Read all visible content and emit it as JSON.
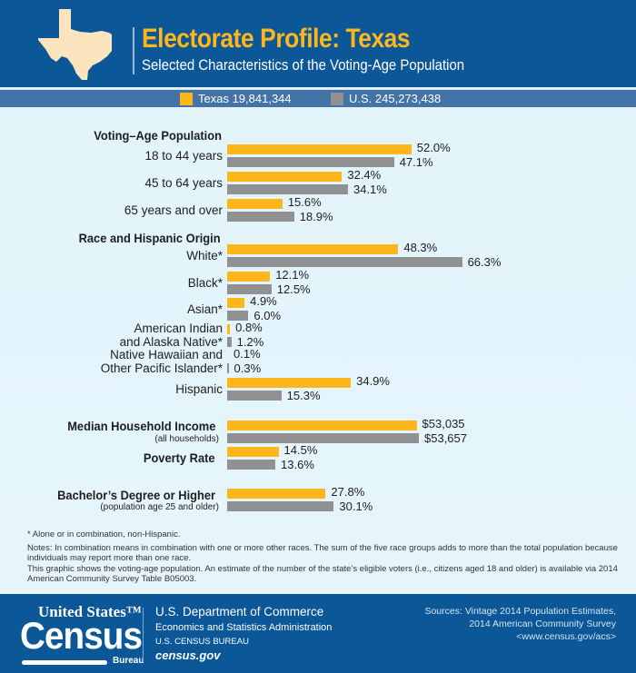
{
  "header": {
    "title": "Electorate Profile: Texas",
    "subtitle": "Selected Characteristics of the Voting-Age Population",
    "state_icon": "texas-map-icon"
  },
  "legend": {
    "items": [
      {
        "label": "Texas 19,841,344",
        "color": "#fdb71a"
      },
      {
        "label": "U.S. 245,273,438",
        "color": "#919194"
      }
    ]
  },
  "sections": {
    "voting_age": "Voting–Age Population",
    "race": "Race and Hispanic Origin",
    "income": "Median Household Income",
    "income_sub": "(all households)",
    "poverty": "Poverty Rate",
    "bachelor": "Bachelor’s Degree or Higher",
    "bachelor_sub": "(population age 25 and older)"
  },
  "chart_data": {
    "type": "bar",
    "orientation": "horizontal",
    "title": "Electorate Profile: Texas",
    "subtitle": "Selected Characteristics of the Voting-Age Population",
    "legend": [
      "Texas 19,841,344",
      "U.S. 245,273,438"
    ],
    "legend_position": "top",
    "groups": [
      {
        "name": "Voting–Age Population",
        "categories": [
          "18 to 44 years",
          "45 to 64 years",
          "65 years and over"
        ],
        "series": [
          {
            "name": "Texas",
            "values": [
              52.0,
              32.4,
              15.6
            ],
            "labels": [
              "52.0%",
              "32.4%",
              "15.6%"
            ]
          },
          {
            "name": "U.S.",
            "values": [
              47.1,
              34.1,
              18.9
            ],
            "labels": [
              "47.1%",
              "34.1%",
              "18.9%"
            ]
          }
        ]
      },
      {
        "name": "Race and Hispanic Origin",
        "categories": [
          "White*",
          "Black*",
          "Asian*",
          "American Indian and Alaska Native*",
          "Native Hawaiian and Other Pacific Islander*",
          "Hispanic"
        ],
        "series": [
          {
            "name": "Texas",
            "values": [
              48.3,
              12.1,
              4.9,
              0.8,
              0.1,
              34.9
            ],
            "labels": [
              "48.3%",
              "12.1%",
              "4.9%",
              "0.8%",
              "0.1%",
              "34.9%"
            ]
          },
          {
            "name": "U.S.",
            "values": [
              66.3,
              12.5,
              6.0,
              1.2,
              0.3,
              15.3
            ],
            "labels": [
              "66.3%",
              "12.5%",
              "6.0%",
              "1.2%",
              "0.3%",
              "15.3%"
            ]
          }
        ]
      },
      {
        "name": "Median Household Income",
        "categories": [
          "Median Household Income (all households)"
        ],
        "series": [
          {
            "name": "Texas",
            "values": [
              53035
            ],
            "labels": [
              "$53,035"
            ]
          },
          {
            "name": "U.S.",
            "values": [
              53657
            ],
            "labels": [
              "$53,657"
            ]
          }
        ]
      },
      {
        "name": "Poverty Rate",
        "categories": [
          "Poverty Rate"
        ],
        "series": [
          {
            "name": "Texas",
            "values": [
              14.5
            ],
            "labels": [
              "14.5%"
            ]
          },
          {
            "name": "U.S.",
            "values": [
              13.6
            ],
            "labels": [
              "13.6%"
            ]
          }
        ]
      },
      {
        "name": "Bachelor’s Degree or Higher",
        "categories": [
          "Bachelor’s Degree or Higher (population age 25 and older)"
        ],
        "series": [
          {
            "name": "Texas",
            "values": [
              27.8
            ],
            "labels": [
              "27.8%"
            ]
          },
          {
            "name": "U.S.",
            "values": [
              30.1
            ],
            "labels": [
              "30.1%"
            ]
          }
        ]
      }
    ]
  },
  "rows": [
    {
      "label": "18 to 44 years",
      "tx": 52.0,
      "us": 47.1,
      "tx_label": "52.0%",
      "us_label": "47.1%"
    },
    {
      "label": "45 to 64 years",
      "tx": 32.4,
      "us": 34.1,
      "tx_label": "32.4%",
      "us_label": "34.1%"
    },
    {
      "label": "65 years and over",
      "tx": 15.6,
      "us": 18.9,
      "tx_label": "15.6%",
      "us_label": "18.9%"
    },
    {
      "label": "White*",
      "tx": 48.3,
      "us": 66.3,
      "tx_label": "48.3%",
      "us_label": "66.3%"
    },
    {
      "label": "Black*",
      "tx": 12.1,
      "us": 12.5,
      "tx_label": "12.1%",
      "us_label": "12.5%"
    },
    {
      "label": "Asian*",
      "tx": 4.9,
      "us": 6.0,
      "tx_label": "4.9%",
      "us_label": "6.0%"
    },
    {
      "label": "American Indian\nand Alaska Native*",
      "tx": 0.8,
      "us": 1.2,
      "tx_label": "0.8%",
      "us_label": "1.2%"
    },
    {
      "label": "Native Hawaiian and\nOther Pacific Islander*",
      "tx": 0.1,
      "us": 0.3,
      "tx_label": "0.1%",
      "us_label": "0.3%"
    },
    {
      "label": "Hispanic",
      "tx": 34.9,
      "us": 15.3,
      "tx_label": "34.9%",
      "us_label": "15.3%"
    },
    {
      "label": "",
      "tx": 53035,
      "us": 53657,
      "tx_label": "$53,035",
      "us_label": "$53,657",
      "income": true
    },
    {
      "label": "",
      "tx": 14.5,
      "us": 13.6,
      "tx_label": "14.5%",
      "us_label": "13.6%"
    },
    {
      "label": "",
      "tx": 27.8,
      "us": 30.1,
      "tx_label": "27.8%",
      "us_label": "30.1%"
    }
  ],
  "notes": {
    "asterisk": "* Alone or in combination, non-Hispanic.",
    "notes": "Notes: In combination means in combination with one or more other races. The sum of the five race groups adds to more than the total population because individuals may report more than one race.",
    "graphic": "This graphic shows the voting-age population. An estimate of the number of the state’s eligible voters (i.e., citizens aged 18 and older) is available via 2014 American Community Survey Table B05003."
  },
  "footer": {
    "logo_united_states": "United States™",
    "logo_census": "Census",
    "logo_bureau": "Bureau",
    "dept": "U.S. Department of Commerce",
    "esa": "Economics and Statistics Administration",
    "bureau": "U.S. CENSUS BUREAU",
    "site": "census.gov",
    "sources_line1": "Sources: Vintage 2014 Population Estimates,",
    "sources_line2": "2014 American Community Survey",
    "sources_line3": "<www.census.gov/acs>"
  }
}
